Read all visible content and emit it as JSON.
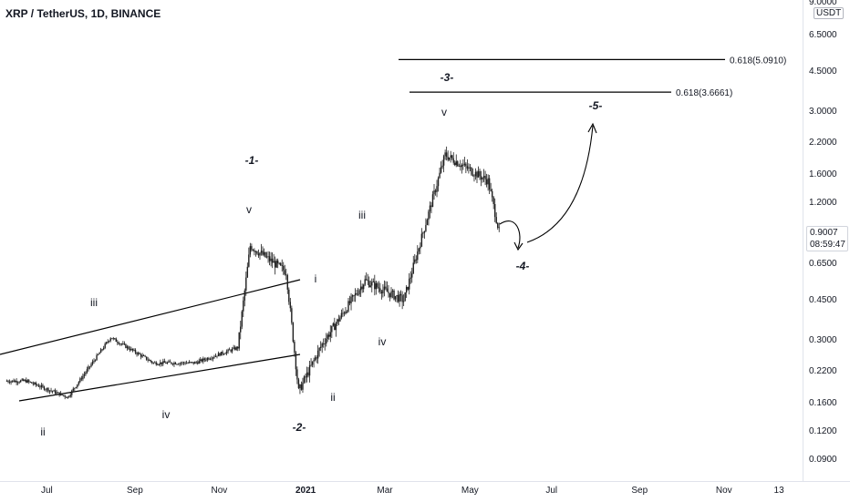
{
  "header": {
    "title": "XRP / TetherUS, 1D, BINANCE"
  },
  "price_axis": {
    "currency": "USDT",
    "current_price": "0.9007",
    "countdown": "08:59:47"
  },
  "chart_data": {
    "type": "candlestick",
    "title": "XRP / TetherUS, 1D, BINANCE",
    "y_scale": "log",
    "ylim": [
      0.065,
      9.0
    ],
    "x_ticks": [
      "Jul",
      "Sep",
      "Nov",
      "2021",
      "Mar",
      "May",
      "Jul",
      "Sep",
      "Nov",
      "13"
    ],
    "y_ticks": [
      "9.0000",
      "6.5000",
      "4.5000",
      "3.0000",
      "2.2000",
      "1.6000",
      "1.2000",
      "0.9007",
      "0.6500",
      "0.4500",
      "0.3000",
      "0.2200",
      "0.1600",
      "0.1200",
      "0.0900"
    ],
    "approx_closes": [
      {
        "date": "2020-06",
        "close": 0.2
      },
      {
        "date": "2020-07",
        "close": 0.17
      },
      {
        "date": "2020-08",
        "close": 0.31
      },
      {
        "date": "2020-09",
        "close": 0.24
      },
      {
        "date": "2020-10",
        "close": 0.24
      },
      {
        "date": "2020-11",
        "close": 0.28
      },
      {
        "date": "2020-11-24",
        "close": 0.78
      },
      {
        "date": "2020-12-20",
        "close": 0.6
      },
      {
        "date": "2020-12-29",
        "close": 0.18
      },
      {
        "date": "2021-01",
        "close": 0.29
      },
      {
        "date": "2021-02",
        "close": 0.55
      },
      {
        "date": "2021-03",
        "close": 0.45
      },
      {
        "date": "2021-04-14",
        "close": 1.95
      },
      {
        "date": "2021-05-15",
        "close": 1.5
      },
      {
        "date": "2021-05-23",
        "close": 0.9
      }
    ],
    "wave_labels": [
      "ii",
      "iii",
      "iv",
      "v",
      "-1-",
      "i",
      "-2-",
      "ii",
      "iii",
      "iv",
      "v",
      "-3-",
      "-4-",
      "-5-"
    ],
    "fib_levels": [
      {
        "label": "0.618(5.0910)",
        "value": 5.091
      },
      {
        "label": "0.618(3.6661)",
        "value": 3.6661
      }
    ]
  },
  "colors": {
    "candle_up": "#26a69a",
    "candle_down": "#ef5350",
    "candle_mono": "#1f1f1f",
    "line": "#000000",
    "axis_text": "#131722"
  }
}
